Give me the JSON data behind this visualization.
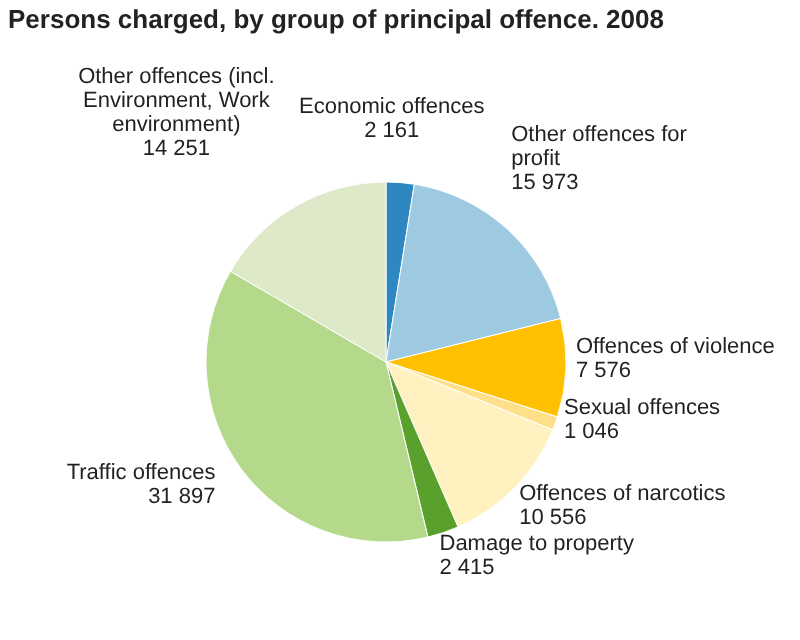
{
  "chart_data": {
    "type": "pie",
    "title": "Persons charged, by group of principal offence. 2008",
    "categories": [
      "Economic offences",
      "Other offences for profit",
      "Offences of violence",
      "Sexual offences",
      "Offences of narcotics",
      "Damage to property",
      "Traffic offences",
      "Other offences (incl. Environment, Work environment)"
    ],
    "values": [
      2161,
      15973,
      7576,
      1046,
      10556,
      2415,
      31897,
      14251
    ],
    "value_labels": [
      "2 161",
      "15 973",
      "7 576",
      "1 046",
      "10 556",
      "2 415",
      "31 897",
      "14 251"
    ],
    "colors": [
      "#2e87c0",
      "#9ecae1",
      "#ffc000",
      "#ffe08a",
      "#fff2c0",
      "#5aa02c",
      "#b5d98b",
      "#dde9c8"
    ]
  }
}
